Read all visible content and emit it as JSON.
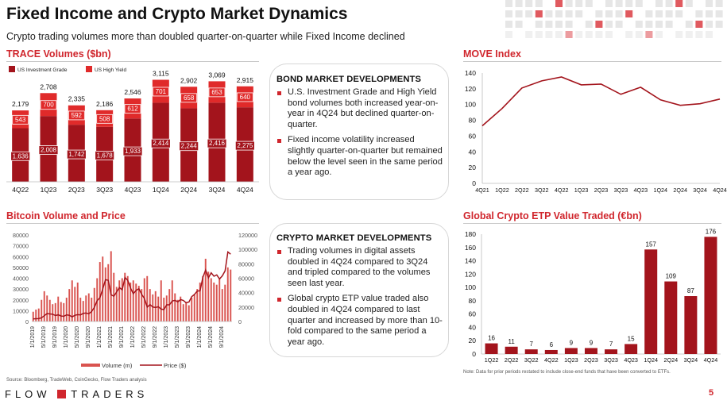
{
  "page": {
    "title": "Fixed Income and Crypto Market Dynamics",
    "subtitle": "Crypto trading volumes more than doubled quarter-on-quarter while Fixed Income declined",
    "source": "Source: Bloomberg, TradeWeb, CoinGecko, Flow Traders analysis",
    "note": "Note: Data for prior periods restated to include close-end funds that have been converted to ETFs.",
    "logo_left": "FLOW",
    "logo_right": "TRADERS",
    "page_number": "5",
    "colors": {
      "accent": "#d0262d",
      "dark_red": "#a3141c",
      "bright_red": "#e02a2a",
      "grid": "#d9d9d9"
    }
  },
  "bond_box": {
    "heading": "BOND MARKET DEVELOPMENTS",
    "bullets": [
      "U.S. Investment Grade and High Yield bond volumes both increased year-on-year in 4Q24 but declined quarter-on-quarter.",
      "Fixed income volatility increased slightly quarter-on-quarter but remained below the level seen in the same period a year ago."
    ]
  },
  "crypto_box": {
    "heading": "CRYPTO MARKET DEVELOPMENTS",
    "bullets": [
      "Trading volumes in digital assets doubled in 4Q24 compared to 3Q24 and tripled compared to the volumes seen last year.",
      "Global crypto ETP value traded also doubled in 4Q24 compared to last quarter and increased by more than 10-fold compared to the same period a year ago."
    ]
  },
  "chart_data": [
    {
      "id": "trace",
      "type": "bar",
      "stacked": true,
      "title": "TRACE Volumes ($bn)",
      "categories": [
        "4Q22",
        "1Q23",
        "2Q23",
        "3Q23",
        "4Q23",
        "1Q24",
        "2Q24",
        "3Q24",
        "4Q24"
      ],
      "series": [
        {
          "name": "US Investment Grade",
          "color": "#a3141c",
          "values": [
            1636,
            2008,
            1742,
            1678,
            1933,
            2414,
            2244,
            2416,
            2275
          ]
        },
        {
          "name": "US High Yield",
          "color": "#e02a2a",
          "values": [
            543,
            700,
            592,
            508,
            612,
            701,
            658,
            653,
            640
          ]
        }
      ],
      "totals": [
        2179,
        2708,
        2335,
        2186,
        2546,
        3115,
        2902,
        3069,
        2915
      ],
      "ylim": [
        0,
        3200
      ],
      "legend": "top-left"
    },
    {
      "id": "move",
      "type": "line",
      "title": "MOVE Index",
      "categories": [
        "4Q21",
        "1Q22",
        "2Q22",
        "3Q22",
        "4Q22",
        "1Q23",
        "2Q23",
        "3Q23",
        "4Q23",
        "1Q24",
        "2Q24",
        "3Q24",
        "4Q24"
      ],
      "values": [
        73,
        95,
        121,
        130,
        135,
        125,
        126,
        113,
        122,
        106,
        99,
        101,
        107
      ],
      "ylim": [
        0,
        140
      ],
      "yticks": [
        0,
        20,
        40,
        60,
        80,
        100,
        120,
        140
      ],
      "grid": false,
      "color": "#a3141c"
    },
    {
      "id": "bitcoin",
      "type": "bar+line",
      "title": "Bitcoin Volume and Price",
      "x_ticks": [
        "1/1/2019",
        "5/1/2019",
        "9/1/2019",
        "1/1/2020",
        "5/1/2020",
        "9/1/2020",
        "1/1/2021",
        "5/1/2021",
        "9/1/2021",
        "1/1/2022",
        "5/1/2022",
        "9/1/2022",
        "1/1/2023",
        "5/1/2023",
        "9/1/2023",
        "1/1/2024",
        "5/1/2024",
        "9/1/2024"
      ],
      "y_left_ticks": [
        "0",
        "10000",
        "20000",
        "30000",
        "40000",
        "50000",
        "60000",
        "70000",
        "80000"
      ],
      "y_right_ticks": [
        "0",
        "20000",
        "40000",
        "60000",
        "80000",
        "100000",
        "120000"
      ],
      "ylim_left": [
        0,
        80000
      ],
      "ylim_right": [
        0,
        120000
      ],
      "legend": [
        "Volume (m)",
        "Price ($)"
      ],
      "legend_placement": "bottom",
      "series": [
        {
          "name": "Volume (m)",
          "axis": "left",
          "type": "bar",
          "color": "#d9534f",
          "x": [
            "2019-01",
            "2019-02",
            "2019-03",
            "2019-04",
            "2019-05",
            "2019-06",
            "2019-07",
            "2019-08",
            "2019-09",
            "2019-10",
            "2019-11",
            "2019-12",
            "2020-01",
            "2020-02",
            "2020-03",
            "2020-04",
            "2020-05",
            "2020-06",
            "2020-07",
            "2020-08",
            "2020-09",
            "2020-10",
            "2020-11",
            "2020-12",
            "2021-01",
            "2021-02",
            "2021-03",
            "2021-04",
            "2021-05",
            "2021-06",
            "2021-07",
            "2021-08",
            "2021-09",
            "2021-10",
            "2021-11",
            "2021-12",
            "2022-01",
            "2022-02",
            "2022-03",
            "2022-04",
            "2022-05",
            "2022-06",
            "2022-07",
            "2022-08",
            "2022-09",
            "2022-10",
            "2022-11",
            "2022-12",
            "2023-01",
            "2023-02",
            "2023-03",
            "2023-04",
            "2023-05",
            "2023-06",
            "2023-07",
            "2023-08",
            "2023-09",
            "2023-10",
            "2023-11",
            "2023-12",
            "2024-01",
            "2024-02",
            "2024-03",
            "2024-04",
            "2024-05",
            "2024-06",
            "2024-07",
            "2024-08",
            "2024-09",
            "2024-10",
            "2024-11",
            "2024-12"
          ],
          "values": [
            9000,
            11000,
            12000,
            20000,
            28000,
            24000,
            20000,
            16000,
            17000,
            23000,
            18000,
            17000,
            22000,
            30000,
            38000,
            32000,
            36000,
            22000,
            19000,
            24000,
            26000,
            22000,
            31000,
            40000,
            55000,
            60000,
            50000,
            53000,
            65000,
            45000,
            32000,
            38000,
            40000,
            45000,
            42000,
            36000,
            38000,
            35000,
            33000,
            30000,
            40000,
            42000,
            30000,
            25000,
            28000,
            23000,
            38000,
            22000,
            24000,
            30000,
            38000,
            26000,
            20000,
            23000,
            16000,
            18000,
            15000,
            22000,
            25000,
            30000,
            36000,
            42000,
            58000,
            46000,
            40000,
            36000,
            34000,
            40000,
            30000,
            34000,
            50000,
            48000
          ]
        },
        {
          "name": "Price ($)",
          "axis": "right",
          "type": "line",
          "color": "#a3141c",
          "x": [
            "2019-01",
            "2019-02",
            "2019-03",
            "2019-04",
            "2019-05",
            "2019-06",
            "2019-07",
            "2019-08",
            "2019-09",
            "2019-10",
            "2019-11",
            "2019-12",
            "2020-01",
            "2020-02",
            "2020-03",
            "2020-04",
            "2020-05",
            "2020-06",
            "2020-07",
            "2020-08",
            "2020-09",
            "2020-10",
            "2020-11",
            "2020-12",
            "2021-01",
            "2021-02",
            "2021-03",
            "2021-04",
            "2021-05",
            "2021-06",
            "2021-07",
            "2021-08",
            "2021-09",
            "2021-10",
            "2021-11",
            "2021-12",
            "2022-01",
            "2022-02",
            "2022-03",
            "2022-04",
            "2022-05",
            "2022-06",
            "2022-07",
            "2022-08",
            "2022-09",
            "2022-10",
            "2022-11",
            "2022-12",
            "2023-01",
            "2023-02",
            "2023-03",
            "2023-04",
            "2023-05",
            "2023-06",
            "2023-07",
            "2023-08",
            "2023-09",
            "2023-10",
            "2023-11",
            "2023-12",
            "2024-01",
            "2024-02",
            "2024-03",
            "2024-04",
            "2024-05",
            "2024-06",
            "2024-07",
            "2024-08",
            "2024-09",
            "2024-10",
            "2024-11",
            "2024-12"
          ],
          "values": [
            3600,
            3800,
            4000,
            5200,
            8000,
            11000,
            10500,
            10000,
            8300,
            9200,
            7600,
            7200,
            9300,
            8600,
            6400,
            8600,
            9500,
            9100,
            11300,
            11700,
            10800,
            13800,
            19700,
            29000,
            33000,
            45000,
            58000,
            57000,
            37000,
            35000,
            41000,
            47000,
            43800,
            61000,
            57000,
            46300,
            38500,
            43200,
            45500,
            37700,
            31800,
            19900,
            23300,
            20000,
            19400,
            20500,
            17200,
            16500,
            23100,
            23100,
            28400,
            29300,
            27200,
            30500,
            29200,
            26000,
            27000,
            34500,
            37700,
            42300,
            42500,
            61200,
            71300,
            60600,
            67500,
            62700,
            64600,
            59000,
            63300,
            70200,
            96400,
            93400
          ]
        }
      ]
    },
    {
      "id": "etp",
      "type": "bar",
      "title": "Global Crypto ETP Value Traded (€bn)",
      "categories": [
        "1Q22",
        "2Q22",
        "3Q22",
        "4Q22",
        "1Q23",
        "2Q23",
        "3Q23",
        "4Q23",
        "1Q24",
        "2Q24",
        "3Q24",
        "4Q24"
      ],
      "values": [
        16,
        11,
        7,
        6,
        9,
        9,
        7,
        15,
        157,
        109,
        87,
        176
      ],
      "ylim": [
        0,
        180
      ],
      "yticks": [
        0,
        20,
        40,
        60,
        80,
        100,
        120,
        140,
        160,
        180
      ],
      "color": "#a3141c"
    }
  ]
}
